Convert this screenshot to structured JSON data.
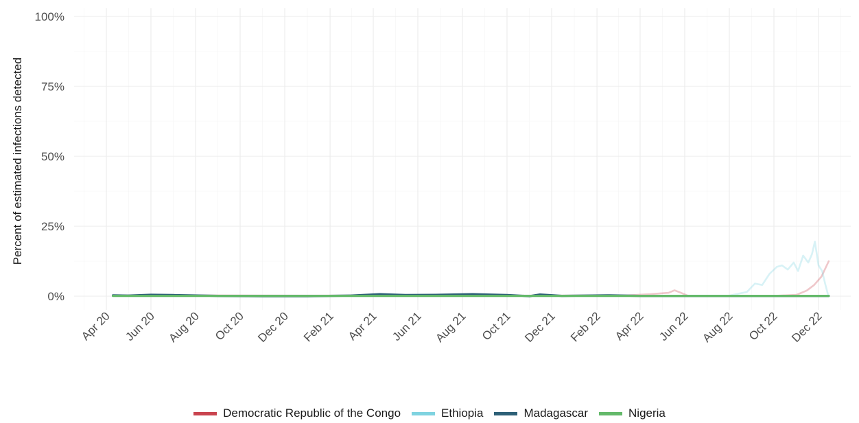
{
  "chart_data": {
    "type": "line",
    "title": "",
    "xlabel": "",
    "ylabel": "Percent of estimated infections detected",
    "ylim": [
      0,
      100
    ],
    "y_ticks": [
      "0%",
      "25%",
      "50%",
      "75%",
      "100%"
    ],
    "y_tick_values": [
      0,
      25,
      50,
      75,
      100
    ],
    "x_ticks": [
      "Apr 20",
      "Jun 20",
      "Aug 20",
      "Oct 20",
      "Dec 20",
      "Feb 21",
      "Apr 21",
      "Jun 21",
      "Aug 21",
      "Oct 21",
      "Dec 21",
      "Feb 22",
      "Apr 22",
      "Jun 22",
      "Aug 22",
      "Oct 22",
      "Dec 22"
    ],
    "x_tick_dates": [
      "2020-04-01",
      "2020-06-01",
      "2020-08-01",
      "2020-10-01",
      "2020-12-01",
      "2021-02-01",
      "2021-04-01",
      "2021-06-01",
      "2021-08-01",
      "2021-10-01",
      "2021-12-01",
      "2022-02-01",
      "2022-04-01",
      "2022-06-01",
      "2022-08-01",
      "2022-10-01",
      "2022-12-01"
    ],
    "xlim": [
      "2020-03-15",
      "2023-01-08"
    ],
    "grid": true,
    "legend_position": "bottom",
    "series": [
      {
        "name": "Democratic Republic of the Congo",
        "color": "#c9444f",
        "faded": true,
        "x": [
          "2020-04-10",
          "2020-08-01",
          "2021-01-01",
          "2021-06-01",
          "2021-12-01",
          "2022-02-01",
          "2022-03-15",
          "2022-04-15",
          "2022-05-10",
          "2022-05-18",
          "2022-05-26",
          "2022-06-05",
          "2022-08-01",
          "2022-10-01",
          "2022-11-01",
          "2022-11-15",
          "2022-11-25",
          "2022-12-05",
          "2022-12-15"
        ],
        "y": [
          0.3,
          0.3,
          0.2,
          0.3,
          0.2,
          0.3,
          0.3,
          0.7,
          1.2,
          2.1,
          1.3,
          0.2,
          0.1,
          0.1,
          0.5,
          2.0,
          4.0,
          7.0,
          12.5
        ]
      },
      {
        "name": "Ethiopia",
        "color": "#7fd3e0",
        "faded": true,
        "x": [
          "2020-04-10",
          "2021-01-01",
          "2021-12-01",
          "2022-08-01",
          "2022-08-25",
          "2022-09-05",
          "2022-09-15",
          "2022-09-25",
          "2022-10-05",
          "2022-10-12",
          "2022-10-20",
          "2022-10-28",
          "2022-11-03",
          "2022-11-10",
          "2022-11-17",
          "2022-11-22",
          "2022-11-26",
          "2022-12-01",
          "2022-12-06",
          "2022-12-10",
          "2022-12-14"
        ],
        "y": [
          0.2,
          0.2,
          0.2,
          0.2,
          1.5,
          4.5,
          4.0,
          8.0,
          10.5,
          11.0,
          9.5,
          12.0,
          9.0,
          14.5,
          12.0,
          15.0,
          19.5,
          11.0,
          9.0,
          4.5,
          0.5
        ]
      },
      {
        "name": "Madagascar",
        "color": "#2d6077",
        "faded": false,
        "x": [
          "2020-04-10",
          "2020-05-01",
          "2020-06-01",
          "2020-07-01",
          "2020-09-01",
          "2020-11-01",
          "2021-01-01",
          "2021-03-01",
          "2021-04-10",
          "2021-05-15",
          "2021-07-01",
          "2021-08-15",
          "2021-10-01",
          "2021-11-01",
          "2021-11-15",
          "2021-12-15",
          "2022-02-15",
          "2022-04-01",
          "2022-06-01",
          "2022-10-01",
          "2022-12-15"
        ],
        "y": [
          0.3,
          0.2,
          0.5,
          0.4,
          0.1,
          0.0,
          0.0,
          0.2,
          0.7,
          0.4,
          0.5,
          0.7,
          0.4,
          0.0,
          0.6,
          0.1,
          0.3,
          0.1,
          0.1,
          0.1,
          0.1
        ]
      },
      {
        "name": "Nigeria",
        "color": "#64b96a",
        "faded": false,
        "x": [
          "2020-04-10",
          "2022-12-15"
        ],
        "y": [
          0.1,
          0.1
        ]
      }
    ]
  }
}
